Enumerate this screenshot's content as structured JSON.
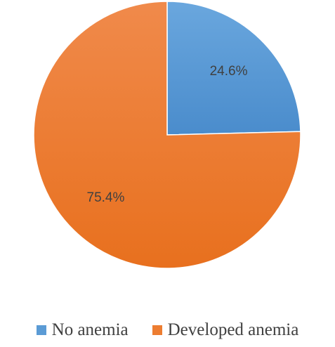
{
  "chart_data": {
    "type": "pie",
    "categories": [
      "No anemia",
      "Developed anemia"
    ],
    "values": [
      24.6,
      75.4
    ],
    "data_labels": [
      "24.6%",
      "75.4%"
    ],
    "colors": [
      "#5b9bd5",
      "#ed7d31"
    ],
    "start_angle": "12 o'clock",
    "direction": "clockwise",
    "legend": {
      "position": "bottom",
      "entries": [
        "No anemia",
        "Developed anemia"
      ]
    }
  }
}
